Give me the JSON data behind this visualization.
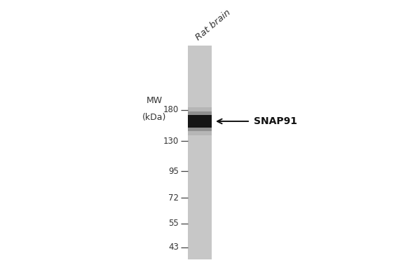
{
  "background_color": "#ffffff",
  "gel_gray": 0.78,
  "band_color": "#111111",
  "mw_markers": [
    180,
    130,
    95,
    72,
    55,
    43
  ],
  "band_kda": 160,
  "band_label": "SNAP91",
  "sample_label": "Rat brain",
  "mw_label_line1": "MW",
  "mw_label_line2": "(kDa)",
  "arrow_label_fontsize": 10,
  "marker_fontsize": 8.5,
  "sample_fontsize": 9.5,
  "mw_fontsize": 9,
  "fig_width": 5.82,
  "fig_height": 3.78,
  "dpi": 100
}
